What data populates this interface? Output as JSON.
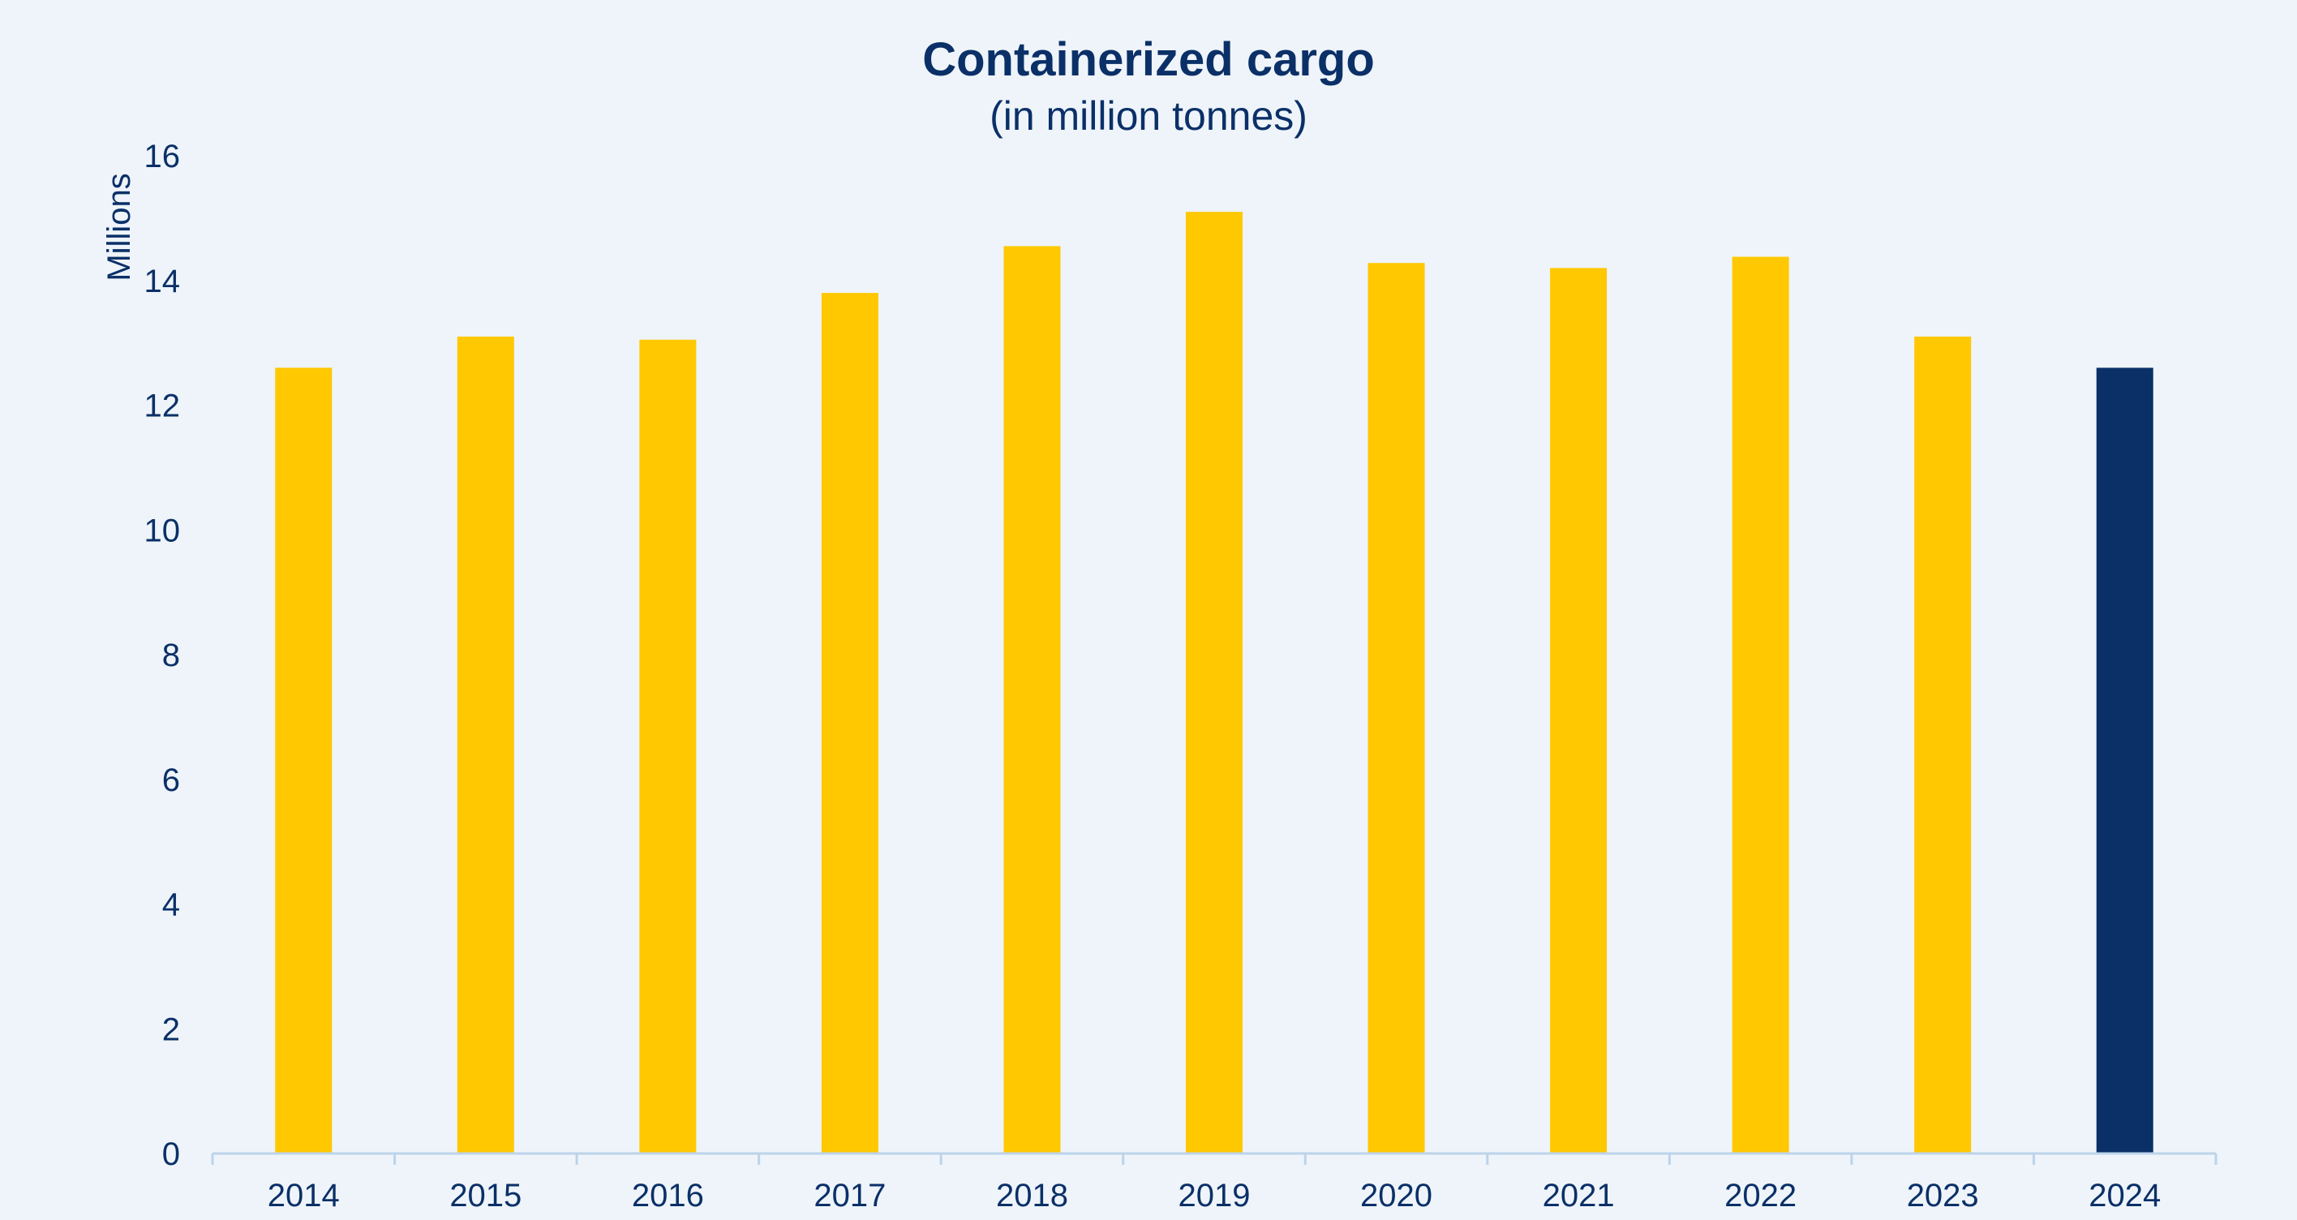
{
  "chart_data": {
    "type": "bar",
    "title": "Containerized cargo",
    "subtitle": "(in million tonnes)",
    "ylabel": "Millions",
    "xlabel": "",
    "categories": [
      "2014",
      "2015",
      "2016",
      "2017",
      "2018",
      "2019",
      "2020",
      "2021",
      "2022",
      "2023",
      "2024"
    ],
    "values": [
      12.6,
      13.1,
      13.05,
      13.8,
      14.55,
      15.1,
      14.28,
      14.2,
      14.38,
      13.1,
      12.6
    ],
    "ylim": [
      0,
      16
    ],
    "yticks": [
      "0",
      "2",
      "4",
      "6",
      "8",
      "10",
      "12",
      "14",
      "16"
    ],
    "grid": false,
    "legend": "none",
    "colors": {
      "bar_default": "#ffc800",
      "bar_highlight": "#0b3068",
      "axis_line": "#bcd3ea",
      "text": "#0b3068",
      "background": "#eef4f9"
    },
    "highlight_category": "2024"
  }
}
